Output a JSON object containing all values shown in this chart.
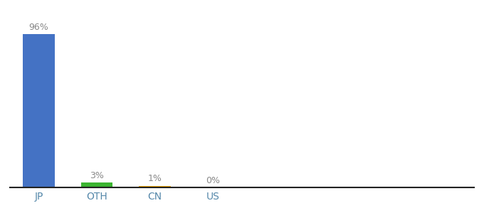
{
  "categories": [
    "JP",
    "OTH",
    "CN",
    "US"
  ],
  "values": [
    96,
    3,
    1,
    0
  ],
  "labels": [
    "96%",
    "3%",
    "1%",
    "0%"
  ],
  "bar_colors": [
    "#4472c4",
    "#3cb531",
    "#f0a500",
    "#4472c4"
  ],
  "ylim": [
    0,
    108
  ],
  "background_color": "#ffffff",
  "label_fontsize": 9,
  "tick_fontsize": 10,
  "bar_width": 0.55,
  "label_color": "#888888"
}
